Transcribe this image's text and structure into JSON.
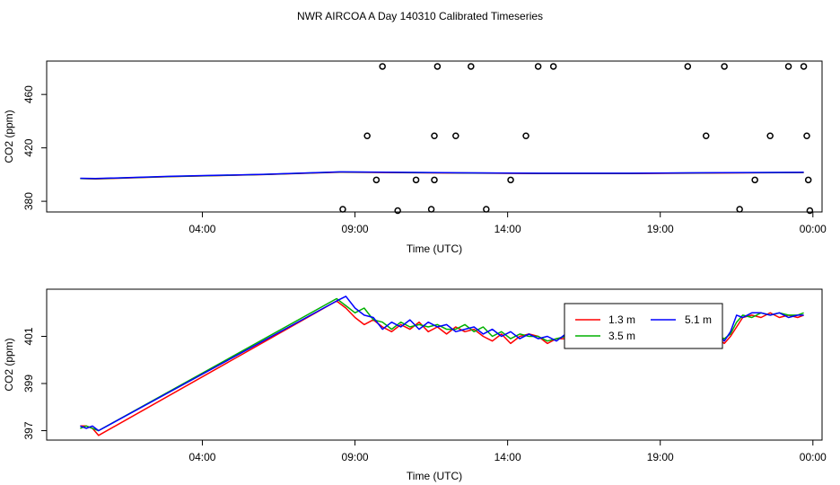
{
  "title": "NWR AIRCOA A  Day 140310  Calibrated Timeseries",
  "colors": {
    "1.3 m": "#ff0000",
    "3.5 m": "#00b000",
    "5.1 m": "#0000ff",
    "points": "#000000"
  },
  "chart_data": [
    {
      "type": "scatter",
      "xlabel": "Time (UTC)",
      "ylabel": "CO2 (ppm)",
      "xlim": [
        -1.1,
        24.3
      ],
      "ylim": [
        372,
        485
      ],
      "x_tick_values": [
        4,
        9,
        14,
        19,
        24
      ],
      "x_tick_labels": [
        "04:00",
        "09:00",
        "14:00",
        "19:00",
        "00:00"
      ],
      "y_tick_values": [
        380,
        420,
        460
      ],
      "y_tick_labels": [
        "380",
        "420",
        "460"
      ],
      "series": [
        {
          "points": [
            [
              8.6,
              374
            ],
            [
              9.4,
              429
            ],
            [
              9.7,
              396
            ],
            [
              9.9,
              481
            ],
            [
              10.4,
              373
            ],
            [
              11.0,
              396
            ],
            [
              11.5,
              374
            ],
            [
              11.6,
              396
            ],
            [
              11.6,
              429
            ],
            [
              11.7,
              481
            ],
            [
              12.3,
              429
            ],
            [
              12.8,
              481
            ],
            [
              13.3,
              374
            ],
            [
              14.1,
              396
            ],
            [
              14.6,
              429
            ],
            [
              15.0,
              481
            ],
            [
              15.5,
              481
            ],
            [
              19.9,
              481
            ],
            [
              20.5,
              429
            ],
            [
              21.1,
              481
            ],
            [
              21.6,
              374
            ],
            [
              22.1,
              396
            ],
            [
              22.6,
              429
            ],
            [
              23.2,
              481
            ],
            [
              23.7,
              481
            ],
            [
              23.8,
              429
            ],
            [
              23.85,
              396
            ],
            [
              23.9,
              373
            ]
          ]
        },
        {
          "color": "#ff0000",
          "x": [
            0,
            0.5,
            3,
            6,
            8.5,
            12,
            15,
            18,
            21,
            23.7
          ],
          "y": [
            397,
            396.7,
            398.5,
            400,
            401.8,
            401.2,
            400.8,
            400.8,
            401.2,
            401.5
          ]
        },
        {
          "color": "#00b000",
          "x": [
            0,
            0.5,
            3,
            6,
            8.5,
            12,
            15,
            18,
            21,
            23.7
          ],
          "y": [
            397.1,
            396.9,
            398.6,
            400.1,
            401.9,
            401.3,
            400.9,
            400.9,
            401.3,
            401.6
          ]
        },
        {
          "color": "#0000ff",
          "x": [
            0,
            0.5,
            3,
            6,
            8.5,
            12,
            15,
            18,
            21,
            23.7
          ],
          "y": [
            397.2,
            397,
            398.7,
            400.2,
            402,
            401.4,
            401,
            401,
            401.4,
            401.7
          ]
        }
      ]
    },
    {
      "type": "line",
      "xlabel": "Time (UTC)",
      "ylabel": "CO2 (ppm)",
      "xlim": [
        -1.1,
        24.3
      ],
      "ylim": [
        396.6,
        403.0
      ],
      "x_tick_values": [
        4,
        9,
        14,
        19,
        24
      ],
      "x_tick_labels": [
        "04:00",
        "09:00",
        "14:00",
        "19:00",
        "00:00"
      ],
      "y_tick_values": [
        397,
        399,
        401
      ],
      "y_tick_labels": [
        "397",
        "399",
        "401"
      ],
      "legend": {
        "position": "top-right",
        "entries": [
          "1.3 m",
          "3.5 m",
          "5.1 m"
        ]
      },
      "series": [
        {
          "name": "1.3 m",
          "color": "#ff0000",
          "x": [
            0,
            0.2,
            0.4,
            0.6,
            8.4,
            8.7,
            9.0,
            9.3,
            9.6,
            9.9,
            10.2,
            10.5,
            10.8,
            11.1,
            11.4,
            11.7,
            12.0,
            12.3,
            12.6,
            12.9,
            13.2,
            13.5,
            13.8,
            14.1,
            14.4,
            14.7,
            15.0,
            15.3,
            15.6,
            15.9,
            16.2,
            20.7,
            20.9,
            21.1,
            21.3,
            21.5,
            21.7,
            22.0,
            22.3,
            22.6,
            22.9,
            23.2,
            23.5,
            23.7
          ],
          "y": [
            397.2,
            397.2,
            397.1,
            396.8,
            402.5,
            402.2,
            401.8,
            401.5,
            401.7,
            401.4,
            401.2,
            401.5,
            401.3,
            401.6,
            401.2,
            401.4,
            401.1,
            401.4,
            401.2,
            401.3,
            401.0,
            400.8,
            401.1,
            400.7,
            401.0,
            401.1,
            401.0,
            400.7,
            400.9,
            400.9,
            400.6,
            401.2,
            400.9,
            400.7,
            401.0,
            401.4,
            401.8,
            401.9,
            401.8,
            402.0,
            401.8,
            401.9,
            401.8,
            401.9
          ]
        },
        {
          "name": "3.5 m",
          "color": "#00b000",
          "x": [
            0,
            0.2,
            0.4,
            0.6,
            8.4,
            8.7,
            9.0,
            9.3,
            9.6,
            9.9,
            10.2,
            10.5,
            10.8,
            11.1,
            11.4,
            11.7,
            12.0,
            12.3,
            12.6,
            12.9,
            13.2,
            13.5,
            13.8,
            14.1,
            14.4,
            14.7,
            15.0,
            15.3,
            15.6,
            15.9,
            16.2,
            20.7,
            20.9,
            21.1,
            21.3,
            21.5,
            21.7,
            22.0,
            22.3,
            22.6,
            22.9,
            23.2,
            23.5,
            23.7
          ],
          "y": [
            397.1,
            397.2,
            397.1,
            397.0,
            402.6,
            402.3,
            402.0,
            402.2,
            401.7,
            401.6,
            401.3,
            401.6,
            401.4,
            401.5,
            401.4,
            401.5,
            401.3,
            401.3,
            401.5,
            401.2,
            401.4,
            401.0,
            401.2,
            400.9,
            401.1,
            401.0,
            401.0,
            400.8,
            400.9,
            401.0,
            401.0,
            401.3,
            401.0,
            400.9,
            401.1,
            401.6,
            401.9,
            401.8,
            402.0,
            401.9,
            402.0,
            401.9,
            401.9,
            402.0
          ]
        },
        {
          "name": "5.1 m",
          "color": "#0000ff",
          "x": [
            0,
            0.2,
            0.4,
            0.6,
            8.4,
            8.7,
            9.0,
            9.3,
            9.6,
            9.9,
            10.2,
            10.5,
            10.8,
            11.1,
            11.4,
            11.7,
            12.0,
            12.3,
            12.6,
            12.9,
            13.2,
            13.5,
            13.8,
            14.1,
            14.4,
            14.7,
            15.0,
            15.3,
            15.6,
            15.9,
            16.2,
            20.7,
            20.9,
            21.1,
            21.3,
            21.5,
            21.7,
            22.0,
            22.3,
            22.6,
            22.9,
            23.2,
            23.5,
            23.7
          ],
          "y": [
            397.2,
            397.1,
            397.2,
            397.0,
            402.5,
            402.7,
            402.2,
            401.9,
            401.8,
            401.3,
            401.6,
            401.4,
            401.7,
            401.3,
            401.6,
            401.4,
            401.5,
            401.2,
            401.3,
            401.4,
            401.1,
            401.3,
            401.0,
            401.2,
            400.9,
            401.1,
            400.9,
            401.0,
            400.8,
            401.1,
            401.1,
            401.5,
            401.1,
            400.8,
            401.2,
            401.9,
            401.8,
            402.0,
            402.0,
            401.9,
            402.0,
            401.8,
            401.9,
            401.9
          ]
        }
      ]
    }
  ]
}
